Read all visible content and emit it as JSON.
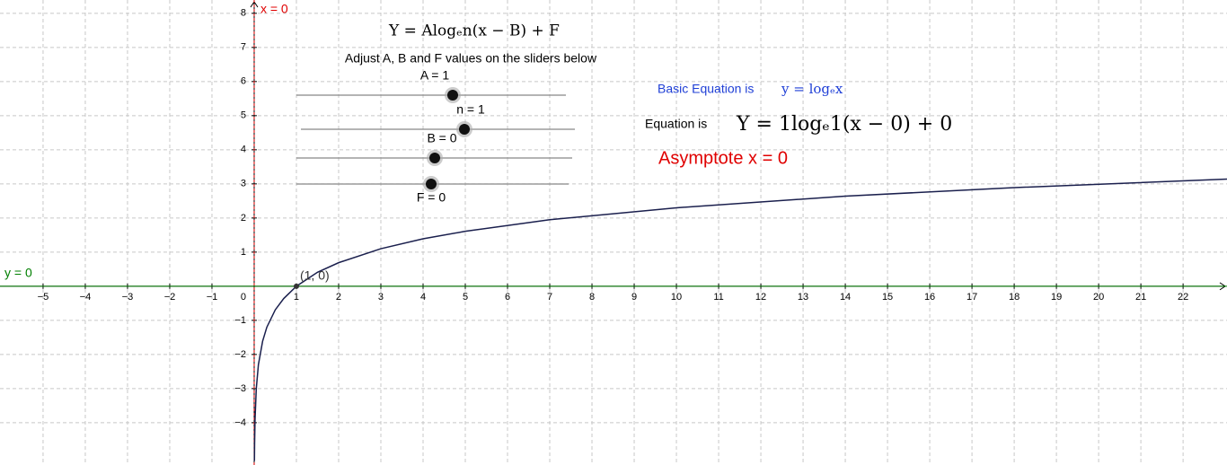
{
  "chart_data": {
    "type": "line",
    "title": "Y = Alogₑn(x − B) + F",
    "subtitle": "Adjust A, B and F values on the sliders below",
    "x": [
      0.006,
      0.01,
      0.02,
      0.05,
      0.1,
      0.2,
      0.3,
      0.5,
      0.7,
      1,
      1.5,
      2,
      3,
      4,
      5,
      7,
      10,
      14,
      18,
      23.04
    ],
    "series": [
      {
        "color": "#1a1f4d",
        "values": [
          -5.12,
          -4.61,
          -3.91,
          -3.0,
          -2.3,
          -1.61,
          -1.2,
          -0.69,
          -0.36,
          0,
          0.41,
          0.69,
          1.1,
          1.39,
          1.61,
          1.95,
          2.3,
          2.64,
          2.89,
          3.14
        ]
      }
    ],
    "xlim": [
      -6.02,
      23.04
    ],
    "ylim": [
      -5.24,
      8.39
    ],
    "xticks": [
      {
        "value": -5,
        "label": "−5"
      },
      {
        "value": -4,
        "label": "−4"
      },
      {
        "value": -3,
        "label": "−3"
      },
      {
        "value": -2,
        "label": "−2"
      },
      {
        "value": -1,
        "label": "−1"
      },
      1,
      2,
      3,
      4,
      5,
      6,
      7,
      8,
      9,
      10,
      11,
      12,
      13,
      14,
      15,
      16,
      17,
      18,
      19,
      20,
      21,
      22
    ],
    "yticks": [
      {
        "value": -4,
        "label": "−4"
      },
      {
        "value": -3,
        "label": "−3"
      },
      {
        "value": -2,
        "label": "−2"
      },
      {
        "value": -1,
        "label": "−1"
      },
      1,
      2,
      3,
      4,
      5,
      6,
      7,
      8
    ],
    "origin_label": "0",
    "grid": true,
    "points": [
      {
        "x": 1,
        "y": 0,
        "label": "(1, 0)"
      }
    ],
    "vlines": [
      {
        "x": 0,
        "label": "x = 0",
        "color": "#e00000"
      }
    ],
    "hlines": [
      {
        "y": 0,
        "label": "y = 0",
        "color": "#007f00"
      }
    ],
    "sliders": [
      {
        "label": "A = 1"
      },
      {
        "label": "n = 1"
      },
      {
        "label": "B = 0"
      },
      {
        "label": "F = 0"
      }
    ],
    "annotations": [
      "Basic Equation is",
      "y = logₑx",
      "Equation is",
      "Y = 1logₑ1(x − 0) + 0",
      "Asymptote x = 0"
    ]
  }
}
